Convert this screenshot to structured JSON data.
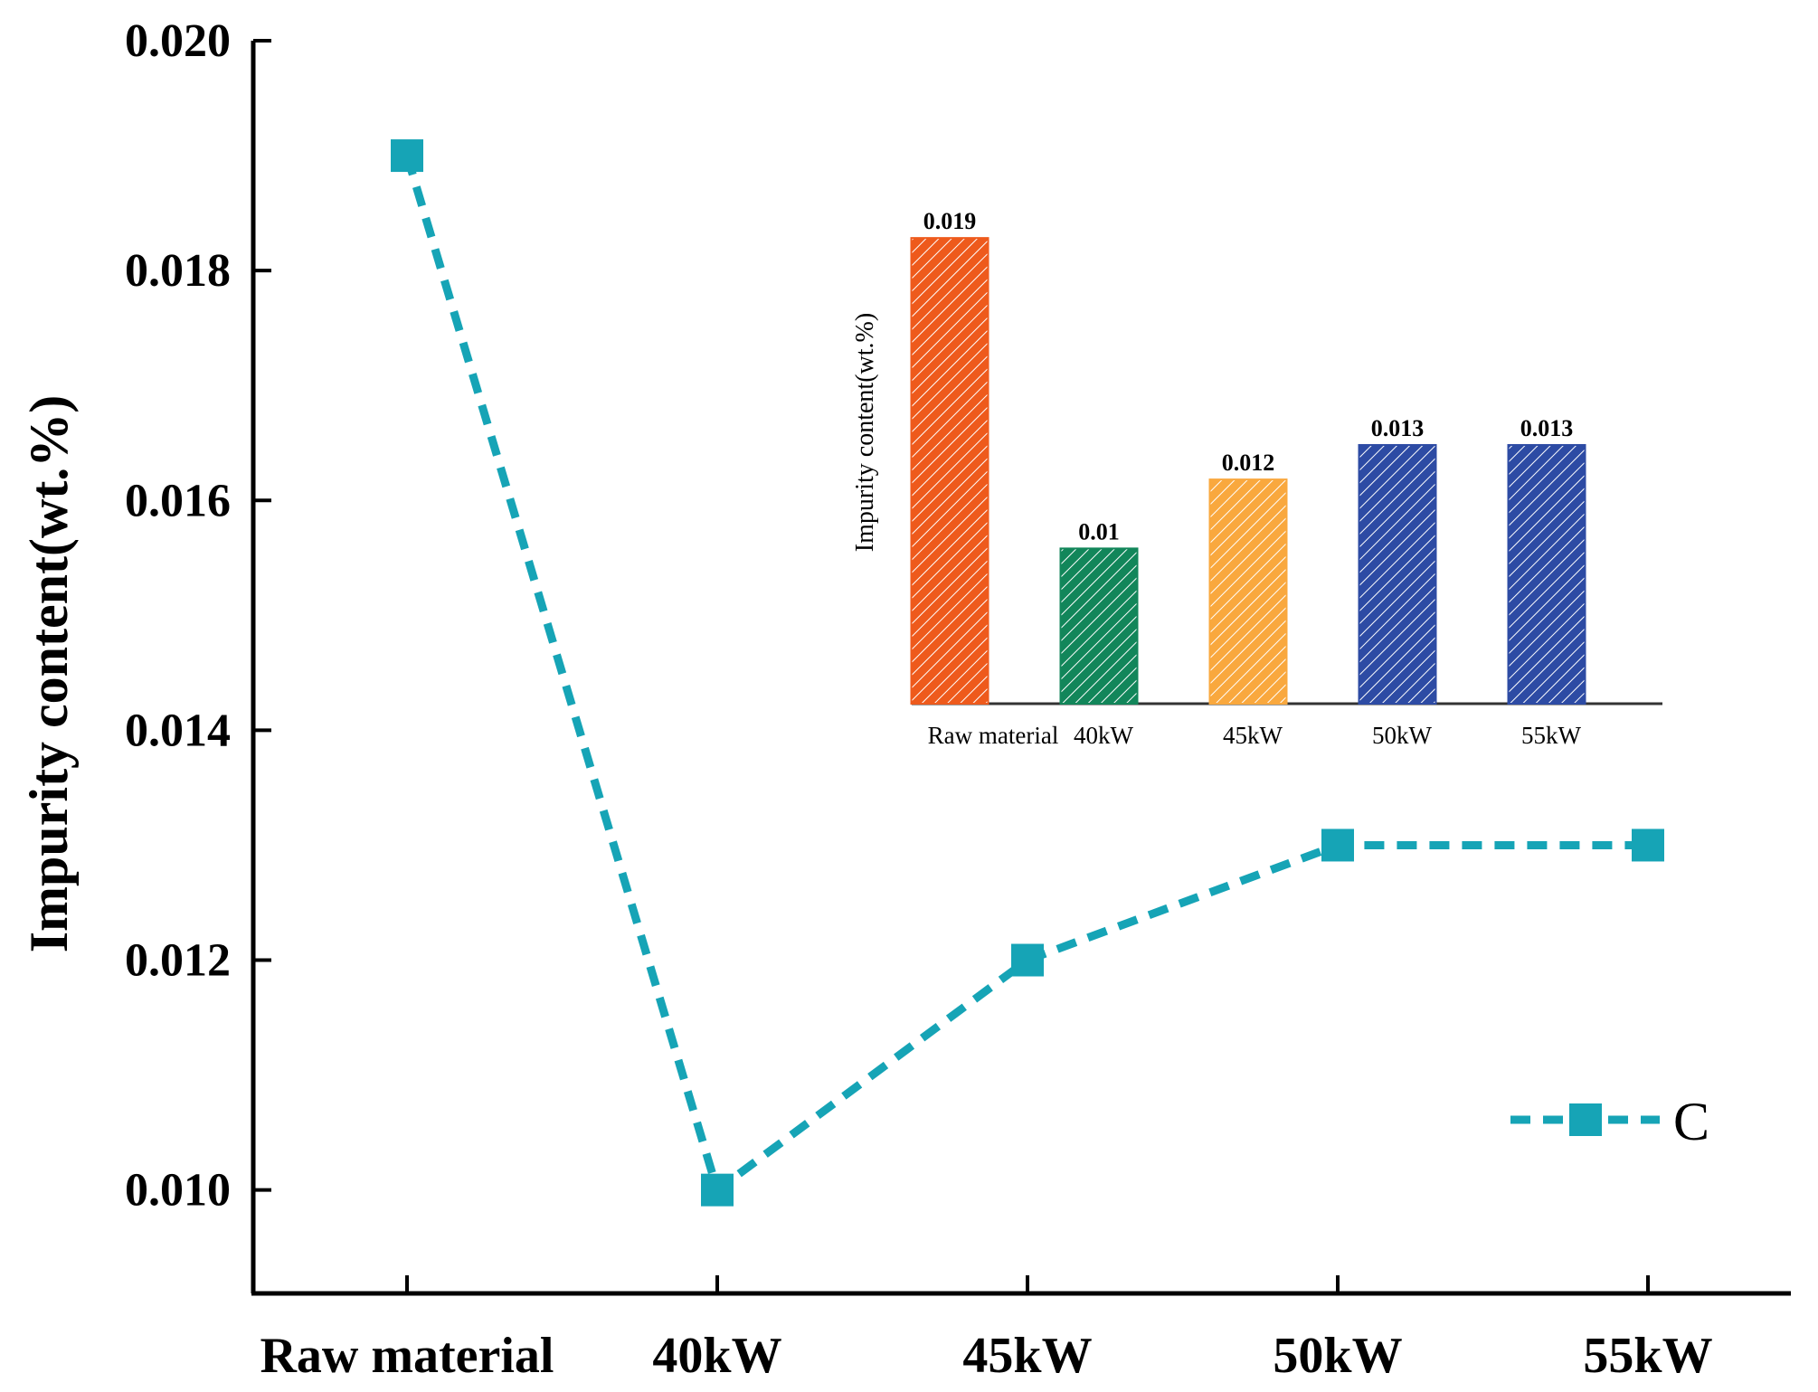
{
  "chart_data": [
    {
      "type": "line",
      "ylabel": "Impurity content(wt.%)",
      "xlabel": "",
      "categories": [
        "Raw material",
        "40kW",
        "45kW",
        "50kW",
        "55kW"
      ],
      "series": [
        {
          "name": "C",
          "values": [
            0.019,
            0.01,
            0.012,
            0.013,
            0.013
          ],
          "color": "#16a4b6",
          "line_style": "dashed",
          "marker": "square"
        }
      ],
      "ylim": [
        0.0091,
        0.02
      ],
      "yticks": [
        0.01,
        0.012,
        0.014,
        0.016,
        0.018,
        0.02
      ],
      "ytick_labels": [
        "0.010",
        "0.012",
        "0.014",
        "0.016",
        "0.018",
        "0.020"
      ],
      "grid": false,
      "legend": "bottom-right"
    },
    {
      "type": "bar",
      "title": "",
      "ylabel": "Impurity content(wt.%)",
      "xlabel": "",
      "categories": [
        "Raw material",
        "40kW",
        "45kW",
        "50kW",
        "55kW"
      ],
      "values": [
        0.019,
        0.01,
        0.012,
        0.013,
        0.013
      ],
      "data_labels": [
        "0.019",
        "0.01",
        "0.012",
        "0.013",
        "0.013"
      ],
      "colors": [
        "#ee5a1c",
        "#12865a",
        "#f9a83e",
        "#2d4ba4",
        "#2d4ba4"
      ],
      "pattern": "diagonal-hatch",
      "ylim": [
        0.0055,
        0.02
      ],
      "position": "top-right"
    }
  ]
}
